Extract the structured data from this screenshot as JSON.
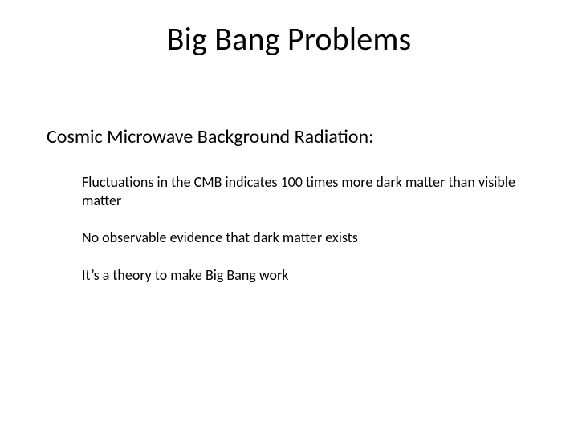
{
  "slide": {
    "title": "Big Bang Problems",
    "subheading": "Cosmic Microwave Background Radiation:",
    "points": [
      "Fluctuations in the CMB indicates 100 times more dark matter than visible matter",
      "No observable evidence that dark matter exists",
      "It’s a theory to make Big Bang work"
    ]
  },
  "style": {
    "background_color": "#ffffff",
    "text_color": "#000000",
    "font_family": "Calibri",
    "title_fontsize": 40,
    "subheading_fontsize": 24,
    "body_fontsize": 18
  }
}
